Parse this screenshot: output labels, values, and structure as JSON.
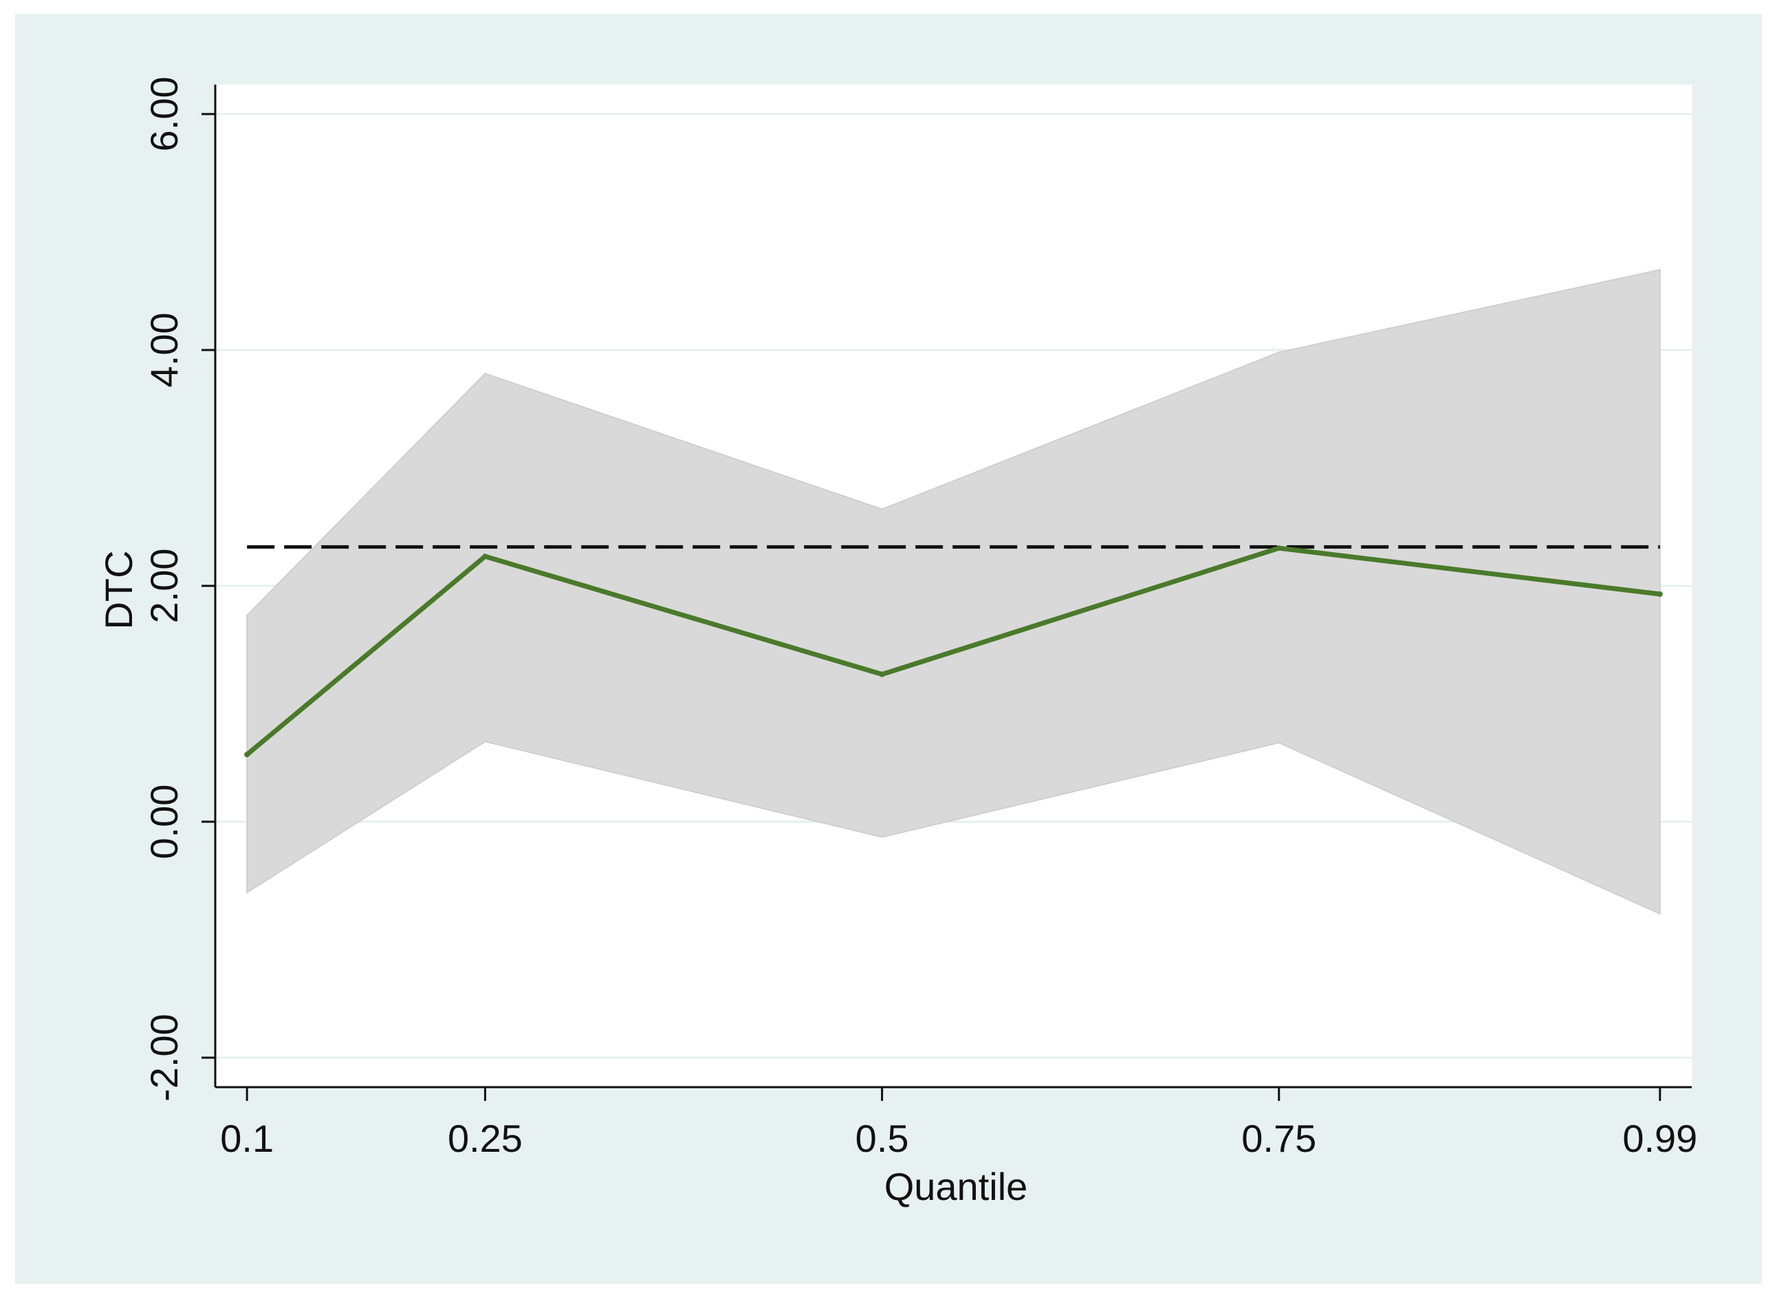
{
  "chart_data": {
    "type": "line",
    "title": "",
    "xlabel": "Quantile",
    "ylabel": "DTC",
    "x": [
      0.1,
      0.25,
      0.5,
      0.75,
      0.99
    ],
    "x_tick_labels": [
      "0.1",
      "0.25",
      "0.5",
      "0.75",
      "0.99"
    ],
    "y_ticks": [
      -2,
      0,
      2,
      4,
      6
    ],
    "y_tick_labels": [
      "-2.00",
      "0.00",
      "2.00",
      "4.00",
      "6.00"
    ],
    "xlim": [
      0.08,
      1.01
    ],
    "ylim": [
      -2.25,
      6.25
    ],
    "grid": true,
    "legend": "none",
    "series": [
      {
        "values": [
          0.57,
          2.25,
          1.25,
          2.32,
          1.93
        ]
      }
    ],
    "confidence_band": {
      "lower": [
        -0.6,
        0.68,
        -0.13,
        0.67,
        -0.78
      ],
      "upper": [
        1.75,
        3.8,
        2.65,
        3.98,
        4.68
      ]
    },
    "reference_line": {
      "value": 2.33,
      "style": "dashed"
    },
    "colors": {
      "outer_background": "#e8f1f2",
      "plot_background": "#ffffff",
      "gridline": "#e6eff0",
      "band": "#d9d9d9",
      "line": "#4a7a2a",
      "reference": "#111111"
    }
  }
}
